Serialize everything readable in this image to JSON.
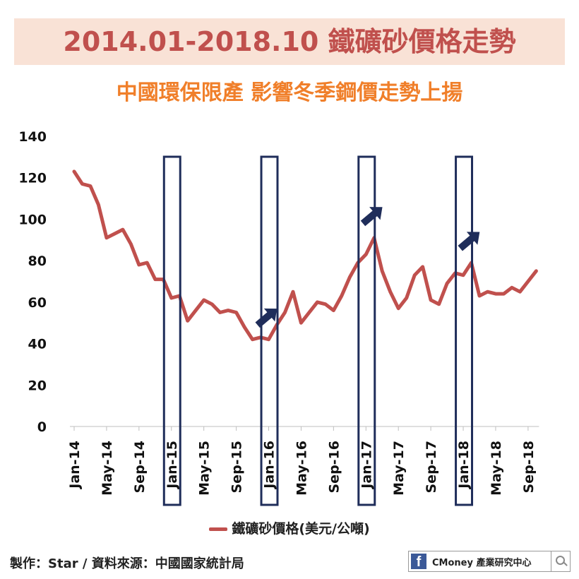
{
  "header": {
    "title": "2014.01-2018.10 鐵礦砂價格走勢",
    "subtitle": "中國環保限產 影響冬季鋼價走勢上揚"
  },
  "footer": {
    "credit": "製作：Star / 資料來源：中國國家統計局",
    "brand": "CMoney 產業研究中心",
    "brand_icon": "facebook-icon",
    "search_icon": "search-icon"
  },
  "colors": {
    "series": "#c0504d",
    "highlight": "#1f2d5a",
    "title": "#c0504d",
    "subtitle": "#f07f2a"
  },
  "chart_data": {
    "type": "line",
    "xlabel": "",
    "ylabel": "",
    "ylim": [
      0,
      140
    ],
    "yticks": [
      0,
      20,
      40,
      60,
      80,
      100,
      120,
      140
    ],
    "xtick_labels": [
      "Jan-14",
      "May-14",
      "Sep-14",
      "Jan-15",
      "May-15",
      "Sep-15",
      "Jan-16",
      "May-16",
      "Sep-16",
      "Jan-17",
      "May-17",
      "Sep-17",
      "Jan-18",
      "May-18",
      "Sep-18"
    ],
    "grid": false,
    "legend": "bottom",
    "series": [
      {
        "name": "鐵礦砂價格(美元/公噸)",
        "start": "2014-01",
        "frequency": "monthly",
        "values": [
          123,
          117,
          116,
          107,
          91,
          93,
          95,
          88,
          78,
          79,
          71,
          71,
          62,
          63,
          51,
          56,
          61,
          59,
          55,
          56,
          55,
          48,
          42,
          43,
          42,
          49,
          55,
          65,
          50,
          55,
          60,
          59,
          56,
          63,
          72,
          79,
          83,
          91,
          75,
          65,
          57,
          62,
          73,
          77,
          61,
          59,
          69,
          74,
          73,
          79,
          63,
          65,
          64,
          64,
          67,
          65,
          70,
          75
        ]
      }
    ],
    "highlights": [
      {
        "from": "Dec-14",
        "to": "Feb-15"
      },
      {
        "from": "Dec-15",
        "to": "Feb-16"
      },
      {
        "from": "Dec-16",
        "to": "Feb-17"
      },
      {
        "from": "Dec-17",
        "to": "Feb-18"
      }
    ],
    "arrow_annotations": [
      "Jan-16",
      "Feb-17",
      "Feb-18"
    ]
  }
}
